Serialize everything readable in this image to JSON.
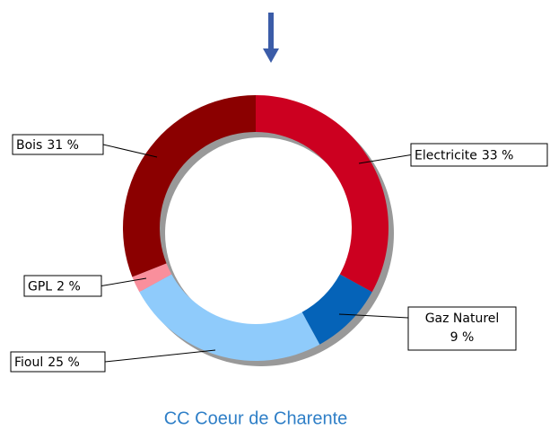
{
  "chart_data": {
    "type": "donut",
    "subtitle": "CC Coeur de Charente",
    "categories": [
      "Electricite",
      "Gaz Naturel",
      "Fioul",
      "GPL",
      "Bois"
    ],
    "values": [
      33,
      9,
      25,
      2,
      31
    ],
    "value_labels": [
      "33 %",
      "9 %",
      "25 %",
      "2 %",
      "31 %"
    ],
    "colors": [
      "#cc0020",
      "#0563b8",
      "#8fcbfb",
      "#f98f9c",
      "#8b0000"
    ]
  }
}
